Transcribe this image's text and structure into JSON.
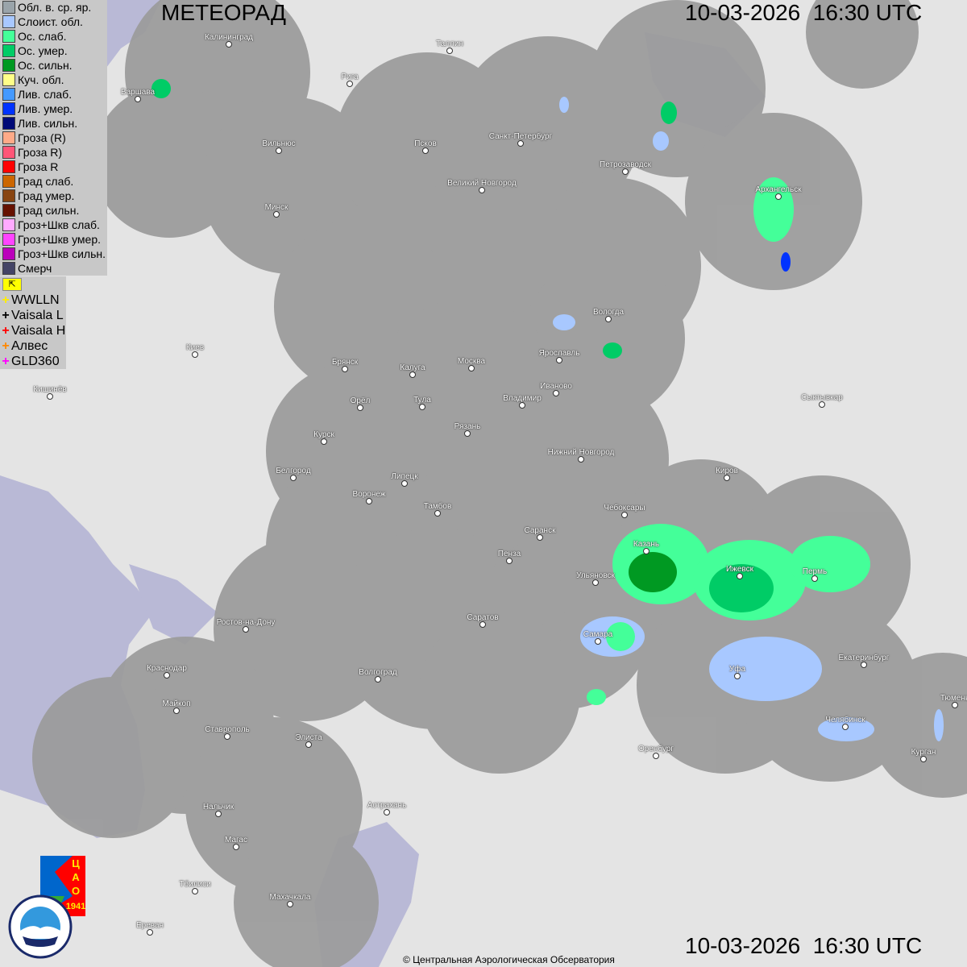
{
  "header": {
    "title": "МЕТЕОРАД",
    "timestamp": "10-03-2026  16:30 UTC"
  },
  "footer": {
    "timestamp": "10-03-2026  16:30 UTC",
    "copyright": "© Центральная Аэрологическая Обсерватория"
  },
  "legend": [
    {
      "label": "Обл. в. ср. яр.",
      "color": "#9aa4aa"
    },
    {
      "label": "Слоист. обл.",
      "color": "#a8c8ff"
    },
    {
      "label": "Ос. слаб.",
      "color": "#44ff99"
    },
    {
      "label": "Ос. умер.",
      "color": "#00cc66"
    },
    {
      "label": "Ос. сильн.",
      "color": "#009922"
    },
    {
      "label": "Куч. обл.",
      "color": "#ffff88"
    },
    {
      "label": "Лив. слаб.",
      "color": "#4499ff"
    },
    {
      "label": "Лив. умер.",
      "color": "#0033ff"
    },
    {
      "label": "Лив. сильн.",
      "color": "#000a77"
    },
    {
      "label": "Гроза (R)",
      "color": "#ffaa88"
    },
    {
      "label": "Гроза R)",
      "color": "#ff5577"
    },
    {
      "label": "Гроза R",
      "color": "#ff0000"
    },
    {
      "label": "Град слаб.",
      "color": "#cc6600"
    },
    {
      "label": "Град умер.",
      "color": "#884411"
    },
    {
      "label": "Град сильн.",
      "color": "#661100"
    },
    {
      "label": "Гроз+Шкв слаб.",
      "color": "#ffaaff"
    },
    {
      "label": "Гроз+Шкв умер.",
      "color": "#ff44ff"
    },
    {
      "label": "Гроз+Шкв сильн.",
      "color": "#bb00bb"
    },
    {
      "label": "Смерч",
      "color": "#444466"
    }
  ],
  "lightning": [
    {
      "label": "WWLLN",
      "color": "#ffee00"
    },
    {
      "label": "Vaisala L",
      "color": "#000000"
    },
    {
      "label": "Vaisala H",
      "color": "#ff0000"
    },
    {
      "label": "Алвес",
      "color": "#ff8800"
    },
    {
      "label": "GLD360",
      "color": "#ff00ff"
    }
  ],
  "logos": {
    "cao": "ЦАО 1941",
    "roshydromet": "РОСГИДРОМЕТ ROSHYDROMET"
  },
  "cities": [
    "Калининград",
    "Рига",
    "Таллин",
    "Варшава",
    "Вильнюс",
    "Псков",
    "Санкт-Петербург",
    "Петрозаводск",
    "Архангельск",
    "Великий Новгород",
    "Минск",
    "Вологда",
    "Ярославль",
    "Брянск",
    "Калуга",
    "Москва",
    "Иваново",
    "Киев",
    "Кишинёв",
    "Орёл",
    "Тула",
    "Владимир",
    "Сыктывкар",
    "Рязань",
    "Курск",
    "Нижний Новгород",
    "Белгород",
    "Липецк",
    "Киров",
    "Воронеж",
    "Тамбов",
    "Чебоксары",
    "Саранск",
    "Казань",
    "Пенза",
    "Ижевск",
    "Пермь",
    "Ульяновск",
    "Ростов-на-Дону",
    "Саратов",
    "Самара",
    "Краснодар",
    "Уфа",
    "Екатеринбург",
    "Волгоград",
    "Майкоп",
    "Тюмень",
    "Ставрополь",
    "Элиста",
    "Челябинск",
    "Оренбург",
    "Курган",
    "Нальчик",
    "Астрахань",
    "Магас",
    "Тбилиси",
    "Махачкала",
    "Ереван"
  ]
}
